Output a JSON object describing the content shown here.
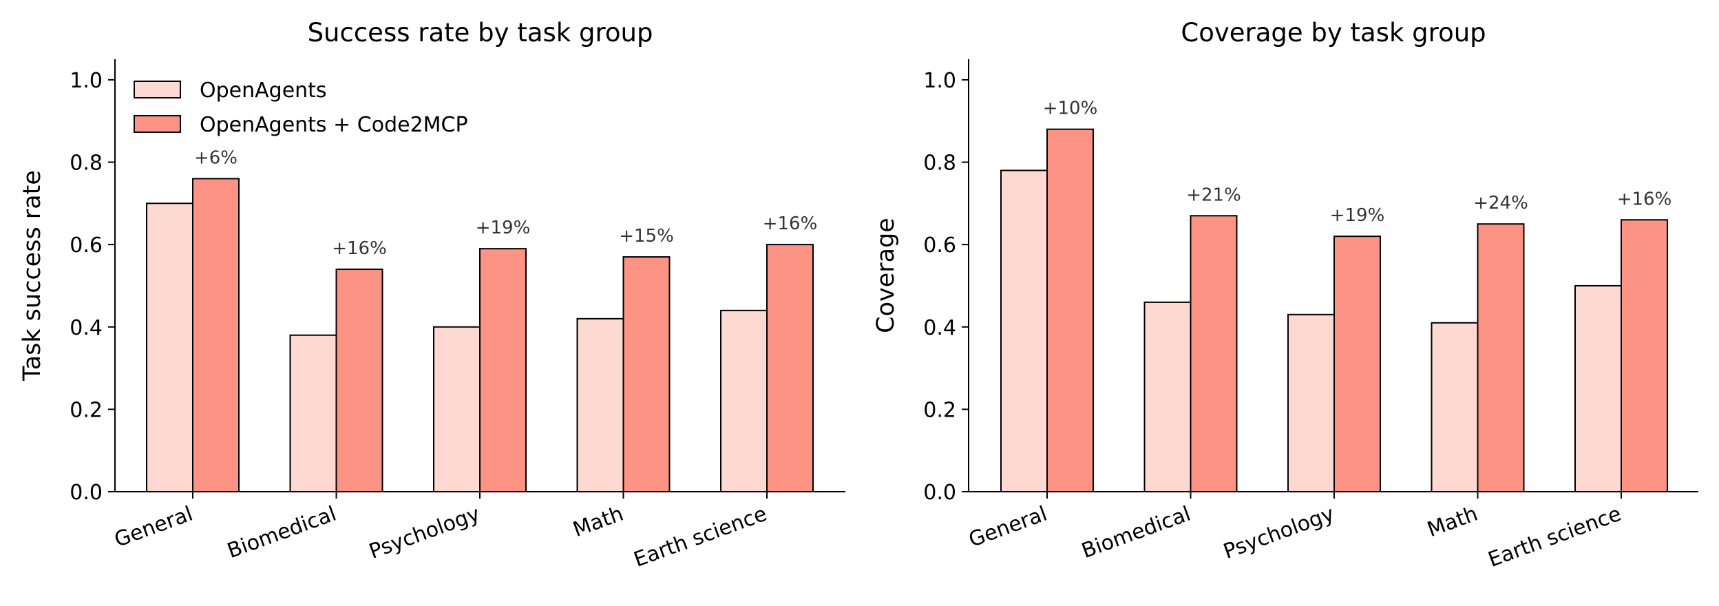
{
  "colors": {
    "base": "#fdd9d1",
    "improved": "#fc9385",
    "edge": "#000000"
  },
  "legend": [
    "OpenAgents",
    "OpenAgents + Code2MCP"
  ],
  "chart_data": [
    {
      "type": "bar",
      "title": "Success rate by task group",
      "xlabel": "",
      "ylabel": "Task success rate",
      "ylim": [
        0,
        1.05
      ],
      "yticks": [
        "0.0",
        "0.2",
        "0.4",
        "0.6",
        "0.8",
        "1.0"
      ],
      "categories": [
        "General",
        "Biomedical",
        "Psychology",
        "Math",
        "Earth science"
      ],
      "series": [
        {
          "name": "OpenAgents",
          "values": [
            0.7,
            0.38,
            0.4,
            0.42,
            0.44
          ]
        },
        {
          "name": "OpenAgents + Code2MCP",
          "values": [
            0.76,
            0.54,
            0.59,
            0.57,
            0.6
          ]
        }
      ],
      "annotations": [
        "+6%",
        "+16%",
        "+19%",
        "+15%",
        "+16%"
      ],
      "legend_position": "top-left"
    },
    {
      "type": "bar",
      "title": "Coverage by task group",
      "xlabel": "",
      "ylabel": "Coverage",
      "ylim": [
        0,
        1.05
      ],
      "yticks": [
        "0.0",
        "0.2",
        "0.4",
        "0.6",
        "0.8",
        "1.0"
      ],
      "categories": [
        "General",
        "Biomedical",
        "Psychology",
        "Math",
        "Earth science"
      ],
      "series": [
        {
          "name": "OpenAgents",
          "values": [
            0.78,
            0.46,
            0.43,
            0.41,
            0.5
          ]
        },
        {
          "name": "OpenAgents + Code2MCP",
          "values": [
            0.88,
            0.67,
            0.62,
            0.65,
            0.66
          ]
        }
      ],
      "annotations": [
        "+10%",
        "+21%",
        "+19%",
        "+24%",
        "+16%"
      ]
    }
  ]
}
